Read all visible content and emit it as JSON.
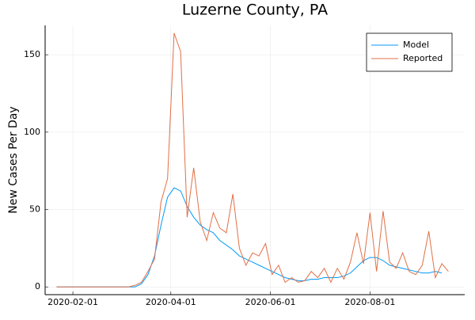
{
  "chart_data": {
    "type": "line",
    "title": "Luzerne County, PA",
    "y_label": "New Cases Per Day",
    "x": [
      "2020-01-22",
      "2020-01-26",
      "2020-01-30",
      "2020-02-03",
      "2020-02-07",
      "2020-02-11",
      "2020-02-15",
      "2020-02-19",
      "2020-02-23",
      "2020-02-27",
      "2020-03-02",
      "2020-03-06",
      "2020-03-10",
      "2020-03-14",
      "2020-03-18",
      "2020-03-22",
      "2020-03-26",
      "2020-03-30",
      "2020-04-03",
      "2020-04-07",
      "2020-04-11",
      "2020-04-15",
      "2020-04-19",
      "2020-04-23",
      "2020-04-27",
      "2020-05-01",
      "2020-05-05",
      "2020-05-09",
      "2020-05-13",
      "2020-05-17",
      "2020-05-21",
      "2020-05-25",
      "2020-05-29",
      "2020-06-02",
      "2020-06-06",
      "2020-06-10",
      "2020-06-14",
      "2020-06-18",
      "2020-06-22",
      "2020-06-26",
      "2020-06-30",
      "2020-07-04",
      "2020-07-08",
      "2020-07-12",
      "2020-07-16",
      "2020-07-20",
      "2020-07-24",
      "2020-07-28",
      "2020-08-01",
      "2020-08-05",
      "2020-08-09",
      "2020-08-13",
      "2020-08-17",
      "2020-08-21",
      "2020-08-25",
      "2020-08-29",
      "2020-09-02",
      "2020-09-06",
      "2020-09-10",
      "2020-09-14",
      "2020-09-18"
    ],
    "series": [
      {
        "name": "Model",
        "color": "#009af9",
        "values": [
          0,
          0,
          0,
          0,
          0,
          0,
          0,
          0,
          0,
          0,
          0,
          0,
          0,
          2,
          8,
          20,
          40,
          58,
          64,
          62,
          52,
          45,
          40,
          37,
          35,
          30,
          27,
          24,
          20,
          18,
          16,
          14,
          12,
          10,
          8,
          6,
          5,
          4,
          4,
          5,
          5,
          6,
          6,
          6,
          7,
          9,
          13,
          17,
          19,
          19,
          17,
          14,
          13,
          12,
          11,
          10,
          9,
          9,
          10,
          9,
          null
        ]
      },
      {
        "name": "Reported",
        "color": "#e26f46",
        "values": [
          0,
          0,
          0,
          0,
          0,
          0,
          0,
          0,
          0,
          0,
          0,
          0,
          1,
          3,
          10,
          18,
          55,
          70,
          164,
          152,
          45,
          77,
          42,
          30,
          48,
          38,
          35,
          60,
          25,
          14,
          22,
          20,
          28,
          8,
          14,
          3,
          6,
          3,
          4,
          10,
          6,
          12,
          3,
          12,
          5,
          16,
          35,
          15,
          48,
          10,
          49,
          16,
          12,
          22,
          10,
          8,
          14,
          36,
          6,
          15,
          10
        ]
      }
    ],
    "xlim": [
      "2020-01-15",
      "2020-09-28"
    ],
    "xticks": [
      "2020-02-01",
      "2020-04-01",
      "2020-06-01",
      "2020-08-01"
    ],
    "ylim": [
      -5,
      169
    ],
    "yticks": [
      0,
      50,
      100,
      150
    ],
    "grid": true,
    "legend": "top-right"
  }
}
